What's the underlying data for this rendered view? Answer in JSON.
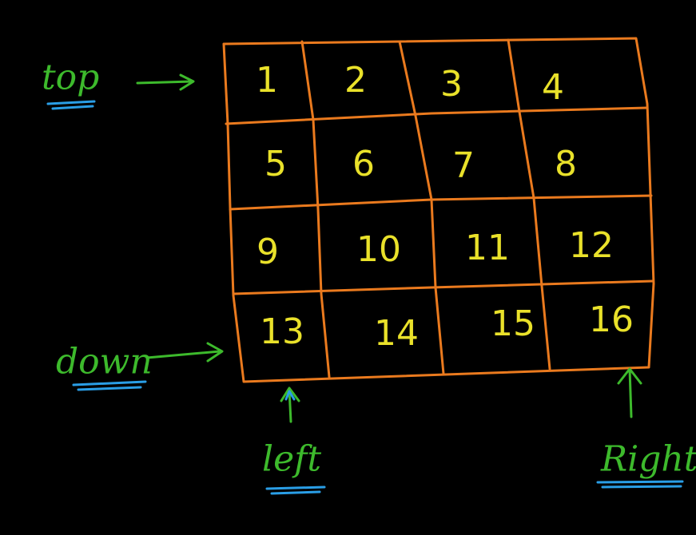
{
  "colors": {
    "background": "#000000",
    "grid": "#ea7a1e",
    "numbers": "#e9e12a",
    "labels": "#3dba2c",
    "underline": "#2a9ee6"
  },
  "grid": {
    "rows": 4,
    "cols": 4,
    "cells": [
      [
        "1",
        "2",
        "3",
        "4"
      ],
      [
        "5",
        "6",
        "7",
        "8"
      ],
      [
        "9",
        "10",
        "11",
        "12"
      ],
      [
        "13",
        "14",
        "15",
        "16"
      ]
    ]
  },
  "labels": {
    "top": "top",
    "down": "down",
    "left": "left",
    "right": "Right"
  }
}
